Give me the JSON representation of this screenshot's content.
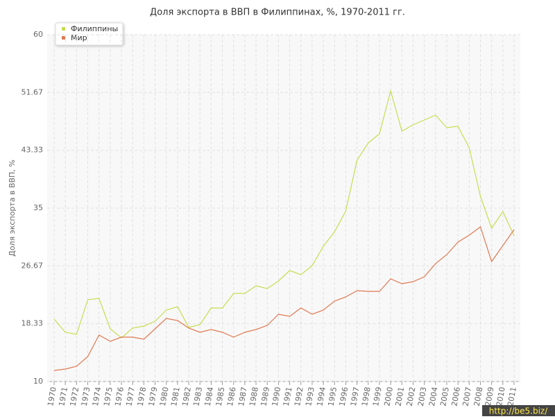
{
  "chart_data": {
    "type": "line",
    "title": "Доля экспорта в ВВП в Филиппинах, %, 1970-2011 гг.",
    "y_label": "Доля экспорта в ВВП, %",
    "categories": [
      "1970",
      "1971",
      "1972",
      "1973",
      "1974",
      "1975",
      "1976",
      "1977",
      "1978",
      "1979",
      "1980",
      "1981",
      "1982",
      "1983",
      "1984",
      "1985",
      "1986",
      "1987",
      "1988",
      "1989",
      "1990",
      "1991",
      "1992",
      "1993",
      "1994",
      "1995",
      "1996",
      "1997",
      "1998",
      "1999",
      "2000",
      "2001",
      "2002",
      "2003",
      "2004",
      "2005",
      "2006",
      "2007",
      "2008",
      "2009",
      "2010",
      "2011"
    ],
    "series": [
      {
        "name": "Филиппины",
        "color": "#c8dc50",
        "values": [
          19.0,
          17.1,
          16.8,
          21.8,
          22.0,
          17.6,
          16.3,
          17.7,
          18.0,
          18.7,
          20.3,
          20.8,
          17.8,
          18.2,
          20.6,
          20.6,
          22.7,
          22.7,
          23.8,
          23.4,
          24.5,
          26.0,
          25.4,
          26.7,
          29.5,
          31.6,
          34.6,
          41.9,
          44.4,
          45.7,
          51.9,
          46.1,
          47.0,
          47.7,
          48.4,
          46.6,
          46.8,
          43.7,
          36.7,
          32.1,
          34.5,
          31.0
        ]
      },
      {
        "name": "Мир",
        "color": "#e07850",
        "values": [
          11.6,
          11.8,
          12.2,
          13.6,
          16.7,
          15.8,
          16.4,
          16.4,
          16.1,
          17.6,
          19.1,
          18.8,
          17.7,
          17.1,
          17.5,
          17.1,
          16.4,
          17.1,
          17.5,
          18.1,
          19.7,
          19.4,
          20.6,
          19.7,
          20.3,
          21.6,
          22.2,
          23.1,
          23.0,
          23.0,
          24.8,
          24.1,
          24.4,
          25.1,
          27.0,
          28.3,
          30.1,
          31.1,
          32.3,
          27.3,
          29.6,
          31.9
        ]
      }
    ],
    "ylim": [
      10,
      60
    ],
    "yticks": [
      10,
      18.33,
      26.67,
      35,
      43.33,
      51.67,
      60
    ],
    "grid": true,
    "legend": "top-left",
    "watermark": "http://be5.biz/"
  }
}
